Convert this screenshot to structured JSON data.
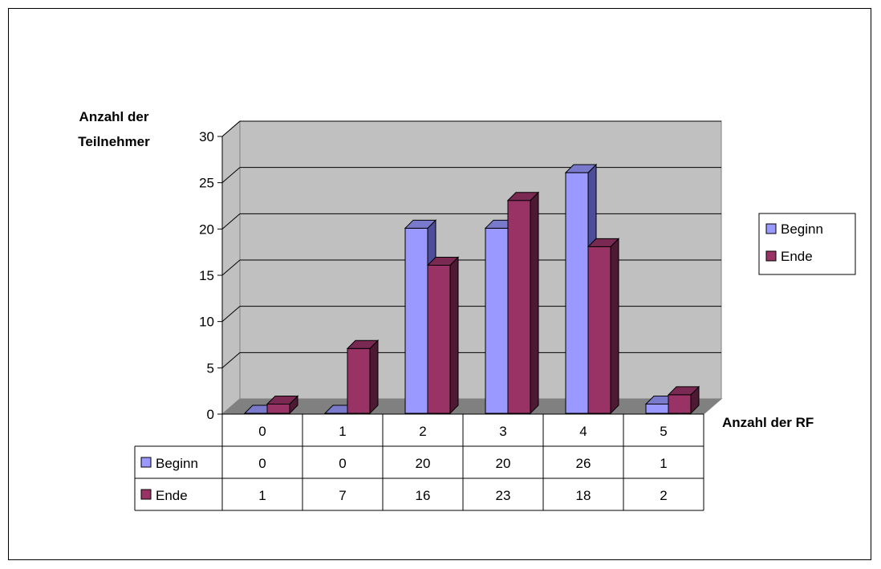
{
  "chart_data": {
    "type": "bar",
    "title": "",
    "ylabel": "Anzahl der Teilnehmer",
    "xlabel": "Anzahl der RF",
    "categories": [
      "0",
      "1",
      "2",
      "3",
      "4",
      "5"
    ],
    "y_ticks": [
      "0",
      "5",
      "10",
      "15",
      "20",
      "25",
      "30"
    ],
    "ylim": [
      0,
      30
    ],
    "grid": true,
    "legend_position": "right",
    "data_table": true,
    "series": [
      {
        "name": "Beginn",
        "values": [
          0,
          0,
          20,
          20,
          26,
          1
        ],
        "color": "#9999FF",
        "color_side": "#4D4D99",
        "color_top": "#7A7ACC"
      },
      {
        "name": "Ende",
        "values": [
          1,
          7,
          16,
          23,
          18,
          2
        ],
        "color": "#993366",
        "color_side": "#4D1933",
        "color_top": "#7A2952"
      }
    ],
    "table_rows": [
      {
        "label": "Beginn",
        "cells": [
          "0",
          "0",
          "20",
          "20",
          "26",
          "1"
        ]
      },
      {
        "label": "Ende",
        "cells": [
          "1",
          "7",
          "16",
          "23",
          "18",
          "2"
        ]
      }
    ],
    "wall_color": "#C0C0C0",
    "floor_color": "#808080"
  }
}
